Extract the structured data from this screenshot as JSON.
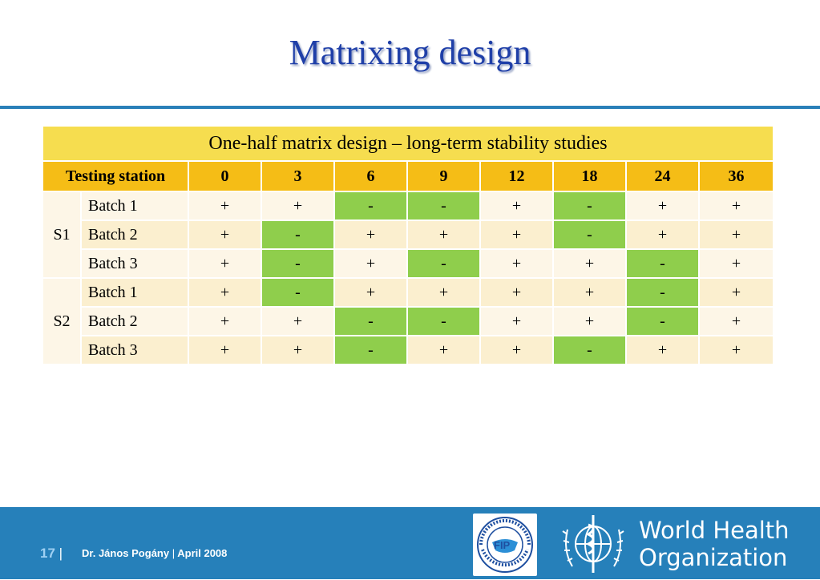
{
  "title": "Matrixing design",
  "table": {
    "caption": "One-half matrix design – long-term stability studies",
    "headers": [
      "Testing station",
      "0",
      "3",
      "6",
      "9",
      "12",
      "18",
      "24",
      "36"
    ],
    "groups": [
      {
        "station": "S1",
        "rows": [
          {
            "batch": "Batch 1",
            "values": [
              "+",
              "+",
              "-",
              "-",
              "+",
              "-",
              "+",
              "+"
            ]
          },
          {
            "batch": "Batch 2",
            "values": [
              "+",
              "-",
              "+",
              "+",
              "+",
              "-",
              "+",
              "+"
            ]
          },
          {
            "batch": "Batch 3",
            "values": [
              "+",
              "-",
              "+",
              "-",
              "+",
              "+",
              "-",
              "+"
            ]
          }
        ]
      },
      {
        "station": "S2",
        "rows": [
          {
            "batch": "Batch 1",
            "values": [
              "+",
              "-",
              "+",
              "+",
              "+",
              "+",
              "-",
              "+"
            ]
          },
          {
            "batch": "Batch 2",
            "values": [
              "+",
              "+",
              "-",
              "-",
              "+",
              "+",
              "-",
              "+"
            ]
          },
          {
            "batch": "Batch 3",
            "values": [
              "+",
              "+",
              "-",
              "+",
              "+",
              "-",
              "+",
              "+"
            ]
          }
        ]
      }
    ]
  },
  "footer": {
    "page_number": "17",
    "author": "Dr. János Pogány",
    "date": "April 2008",
    "fip_logo_text": "FIP",
    "fip_ring_text": "INTERNATIONAL PHARMACEUTICAL FEDERATION",
    "who_line1": "World Health",
    "who_line2": "Organization"
  },
  "colors": {
    "title": "#1f3fa8",
    "rule": "#2b80b9",
    "caption_bg": "#f6dd4f",
    "header_bg": "#f5bd16",
    "negative_bg": "#8fce4c",
    "row_light": "#fdf6e7",
    "row_dark": "#fbefcf",
    "footer_bg": "#2680ba"
  }
}
